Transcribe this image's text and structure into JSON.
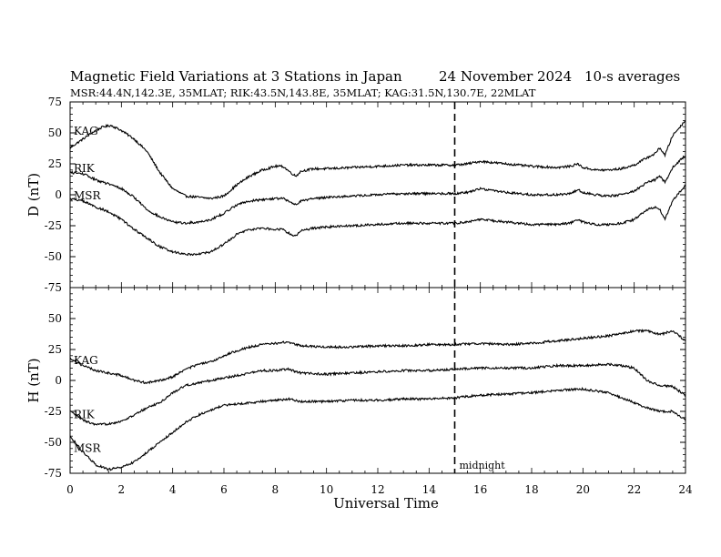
{
  "header": {
    "title": "Magnetic Field Variations at 3 Stations in Japan",
    "date": "24 November 2024",
    "averaging": "10-s averages",
    "stations_line": "MSR:44.4N,142.3E, 35MLAT;  RIK:43.5N,143.8E, 35MLAT;  KAG:31.5N,130.7E, 22MLAT"
  },
  "annotations": {
    "midnight_label": "midnight",
    "midnight_ut": 15
  },
  "chart_data": [
    {
      "type": "line",
      "ylabel": "D (nT)",
      "xlim": [
        0,
        24
      ],
      "ylim": [
        -75,
        75
      ],
      "yticks": [
        -75,
        -50,
        -25,
        0,
        25,
        50,
        75
      ],
      "series": [
        {
          "name": "KAG",
          "x": [
            0,
            0.5,
            1,
            1.3,
            1.6,
            2,
            2.5,
            3,
            3.5,
            4,
            4.5,
            5,
            5.5,
            6,
            6.5,
            7,
            7.5,
            8,
            8.3,
            8.6,
            8.8,
            9,
            9.5,
            10,
            11,
            12,
            13,
            14,
            15,
            15.5,
            16,
            17,
            18,
            19,
            19.5,
            19.8,
            20,
            20.5,
            21,
            21.5,
            22,
            22.5,
            22.8,
            23,
            23.2,
            23.5,
            24
          ],
          "y": [
            38,
            45,
            52,
            55,
            56,
            52,
            45,
            35,
            18,
            5,
            -1,
            -2,
            -3,
            -1,
            8,
            15,
            20,
            23,
            23,
            18,
            15,
            19,
            21,
            21,
            22,
            23,
            24,
            24,
            24,
            25,
            27,
            25,
            23,
            22,
            23,
            25,
            22,
            20,
            20,
            21,
            24,
            30,
            33,
            38,
            32,
            48,
            60
          ]
        },
        {
          "name": "RIK",
          "x": [
            0,
            0.5,
            1,
            1.3,
            1.6,
            2,
            2.5,
            3,
            3.5,
            4,
            4.5,
            5,
            5.5,
            6,
            6.5,
            7,
            7.5,
            8,
            8.3,
            8.6,
            8.8,
            9,
            9.5,
            10,
            11,
            12,
            13,
            14,
            15,
            15.5,
            16,
            17,
            18,
            19,
            19.5,
            19.8,
            20,
            20.5,
            21,
            21.5,
            22,
            22.5,
            22.8,
            23,
            23.2,
            23.5,
            24
          ],
          "y": [
            18,
            17,
            12,
            10,
            8,
            5,
            -2,
            -12,
            -18,
            -22,
            -23,
            -22,
            -20,
            -15,
            -8,
            -5,
            -4,
            -3,
            -3,
            -6,
            -8,
            -5,
            -3,
            -2,
            -1,
            0,
            1,
            1,
            1,
            2,
            5,
            2,
            0,
            0,
            1,
            4,
            2,
            0,
            -1,
            0,
            3,
            10,
            12,
            15,
            10,
            22,
            32
          ]
        },
        {
          "name": "MSR",
          "x": [
            0,
            0.5,
            1,
            1.3,
            1.6,
            2,
            2.5,
            3,
            3.5,
            4,
            4.5,
            5,
            5.5,
            6,
            6.5,
            7,
            7.5,
            8,
            8.3,
            8.6,
            8.8,
            9,
            9.5,
            10,
            11,
            12,
            13,
            14,
            15,
            15.5,
            16,
            17,
            18,
            19,
            19.5,
            19.8,
            20,
            20.5,
            21,
            21.5,
            22,
            22.5,
            22.8,
            23,
            23.2,
            23.5,
            24
          ],
          "y": [
            -3,
            -5,
            -10,
            -12,
            -15,
            -20,
            -28,
            -35,
            -42,
            -46,
            -48,
            -48,
            -46,
            -40,
            -32,
            -28,
            -27,
            -28,
            -28,
            -32,
            -33,
            -29,
            -27,
            -26,
            -25,
            -24,
            -23,
            -23,
            -23,
            -22,
            -20,
            -22,
            -24,
            -24,
            -23,
            -20,
            -22,
            -24,
            -24,
            -23,
            -20,
            -12,
            -10,
            -12,
            -20,
            -5,
            8
          ]
        }
      ]
    },
    {
      "type": "line",
      "ylabel": "H (nT)",
      "xlabel": "Universal Time",
      "xlim": [
        0,
        24
      ],
      "ylim": [
        -75,
        75
      ],
      "xticks": [
        0,
        2,
        4,
        6,
        8,
        10,
        12,
        14,
        16,
        18,
        20,
        22,
        24
      ],
      "yticks": [
        -75,
        -50,
        -25,
        0,
        25,
        50,
        75
      ],
      "series": [
        {
          "name": "KAG",
          "x": [
            0,
            0.5,
            1,
            1.5,
            2,
            2.5,
            3,
            3.5,
            4,
            4.5,
            5,
            5.5,
            6,
            6.5,
            7,
            7.5,
            8,
            8.5,
            9,
            10,
            11,
            12,
            13,
            14,
            15,
            16,
            17,
            18,
            19,
            20,
            21,
            21.5,
            22,
            22.5,
            23,
            23.5,
            24
          ],
          "y": [
            18,
            12,
            8,
            6,
            4,
            0,
            -2,
            0,
            3,
            9,
            13,
            15,
            20,
            24,
            27,
            29,
            30,
            31,
            28,
            27,
            27,
            28,
            28,
            29,
            29,
            30,
            29,
            30,
            32,
            34,
            36,
            38,
            40,
            40,
            37,
            40,
            32
          ]
        },
        {
          "name": "RIK",
          "x": [
            0,
            0.5,
            1,
            1.5,
            2,
            2.5,
            3,
            3.5,
            4,
            4.5,
            5,
            5.5,
            6,
            6.5,
            7,
            7.5,
            8,
            8.5,
            9,
            10,
            11,
            12,
            13,
            14,
            15,
            16,
            17,
            18,
            19,
            20,
            21,
            21.5,
            22,
            22.5,
            23,
            23.5,
            24
          ],
          "y": [
            -25,
            -32,
            -36,
            -35,
            -33,
            -28,
            -22,
            -18,
            -10,
            -4,
            -2,
            0,
            2,
            4,
            6,
            8,
            8,
            9,
            6,
            5,
            6,
            7,
            8,
            8,
            9,
            10,
            10,
            10,
            12,
            12,
            13,
            12,
            10,
            0,
            -4,
            -5,
            -12
          ]
        },
        {
          "name": "MSR",
          "x": [
            0,
            0.5,
            1,
            1.5,
            2,
            2.5,
            3,
            3.5,
            4,
            4.5,
            5,
            5.5,
            6,
            6.5,
            7,
            7.5,
            8,
            8.5,
            9,
            10,
            11,
            12,
            13,
            14,
            15,
            16,
            17,
            18,
            19,
            20,
            21,
            21.5,
            22,
            22.5,
            23,
            23.5,
            24
          ],
          "y": [
            -45,
            -58,
            -68,
            -72,
            -70,
            -66,
            -58,
            -50,
            -42,
            -34,
            -28,
            -24,
            -20,
            -19,
            -18,
            -17,
            -16,
            -15,
            -17,
            -17,
            -16,
            -16,
            -15,
            -15,
            -14,
            -12,
            -11,
            -10,
            -8,
            -7,
            -10,
            -14,
            -18,
            -22,
            -25,
            -25,
            -32
          ]
        }
      ]
    }
  ]
}
